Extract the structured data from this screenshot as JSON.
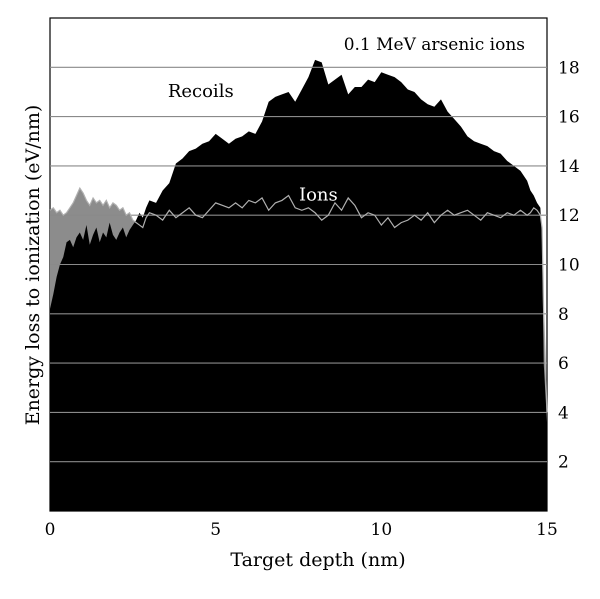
{
  "chart_data": {
    "type": "area",
    "title": "0.1 MeV arsenic ions",
    "xlabel": "Target depth (nm)",
    "ylabel": "Energy loss to ionization (eV/nm)",
    "xlim": [
      0,
      15
    ],
    "ylim": [
      0,
      20
    ],
    "x_ticks": [
      0,
      5,
      10,
      15
    ],
    "y_ticks": [
      2,
      4,
      6,
      8,
      10,
      12,
      14,
      16,
      18
    ],
    "grid": true,
    "series": [
      {
        "name": "Recoils",
        "color": "#000000",
        "x": [
          0.0,
          0.1,
          0.2,
          0.3,
          0.4,
          0.5,
          0.6,
          0.7,
          0.8,
          0.9,
          1.0,
          1.1,
          1.2,
          1.3,
          1.4,
          1.5,
          1.6,
          1.7,
          1.8,
          1.9,
          2.0,
          2.1,
          2.2,
          2.3,
          2.4,
          2.5,
          2.6,
          2.7,
          2.8,
          2.9,
          3.0,
          3.2,
          3.4,
          3.6,
          3.8,
          4.0,
          4.2,
          4.4,
          4.6,
          4.8,
          5.0,
          5.2,
          5.4,
          5.6,
          5.8,
          6.0,
          6.2,
          6.4,
          6.6,
          6.8,
          7.0,
          7.2,
          7.4,
          7.6,
          7.8,
          8.0,
          8.2,
          8.4,
          8.6,
          8.8,
          9.0,
          9.2,
          9.4,
          9.6,
          9.8,
          10.0,
          10.2,
          10.4,
          10.6,
          10.8,
          11.0,
          11.2,
          11.4,
          11.6,
          11.8,
          12.0,
          12.2,
          12.4,
          12.6,
          12.8,
          13.0,
          13.2,
          13.4,
          13.6,
          13.8,
          14.0,
          14.2,
          14.4,
          14.5,
          14.6,
          14.7,
          14.8,
          14.85,
          14.9,
          15.0
        ],
        "values": [
          8.2,
          8.8,
          9.5,
          10.0,
          10.3,
          10.9,
          11.0,
          10.7,
          11.1,
          11.3,
          11.0,
          11.6,
          10.8,
          11.2,
          11.5,
          10.9,
          11.3,
          11.1,
          11.7,
          11.2,
          11.0,
          11.3,
          11.5,
          11.1,
          11.4,
          11.6,
          11.8,
          12.1,
          11.9,
          12.3,
          12.6,
          12.5,
          13.0,
          13.3,
          14.1,
          14.3,
          14.6,
          14.7,
          14.9,
          15.0,
          15.3,
          15.1,
          14.9,
          15.1,
          15.2,
          15.4,
          15.3,
          15.8,
          16.6,
          16.8,
          16.9,
          17.0,
          16.6,
          17.1,
          17.6,
          18.3,
          18.2,
          17.3,
          17.5,
          17.7,
          16.9,
          17.2,
          17.2,
          17.5,
          17.4,
          17.8,
          17.7,
          17.6,
          17.4,
          17.1,
          17.0,
          16.7,
          16.5,
          16.4,
          16.7,
          16.2,
          15.9,
          15.6,
          15.2,
          15.0,
          14.9,
          14.8,
          14.6,
          14.5,
          14.2,
          14.0,
          13.8,
          13.4,
          13.0,
          12.8,
          12.5,
          12.3,
          11.0,
          6.0,
          3.6
        ]
      },
      {
        "name": "Ions",
        "color": "#8c8c8c",
        "x": [
          0.0,
          0.1,
          0.2,
          0.3,
          0.4,
          0.5,
          0.6,
          0.7,
          0.8,
          0.9,
          1.0,
          1.1,
          1.2,
          1.3,
          1.4,
          1.5,
          1.6,
          1.7,
          1.8,
          1.9,
          2.0,
          2.1,
          2.2,
          2.3,
          2.4,
          2.5,
          2.6,
          2.7,
          2.8,
          2.9,
          3.0,
          3.2,
          3.4,
          3.6,
          3.8,
          4.0,
          4.2,
          4.4,
          4.6,
          4.8,
          5.0,
          5.2,
          5.4,
          5.6,
          5.8,
          6.0,
          6.2,
          6.4,
          6.6,
          6.8,
          7.0,
          7.2,
          7.4,
          7.6,
          7.8,
          8.0,
          8.2,
          8.4,
          8.6,
          8.8,
          9.0,
          9.2,
          9.4,
          9.6,
          9.8,
          10.0,
          10.2,
          10.4,
          10.6,
          10.8,
          11.0,
          11.2,
          11.4,
          11.6,
          11.8,
          12.0,
          12.2,
          12.4,
          12.6,
          12.8,
          13.0,
          13.2,
          13.4,
          13.6,
          13.8,
          14.0,
          14.2,
          14.4,
          14.5,
          14.6,
          14.7,
          14.8,
          14.85,
          14.9,
          15.0
        ],
        "values": [
          12.2,
          12.3,
          12.1,
          12.2,
          12.0,
          12.1,
          12.3,
          12.5,
          12.8,
          13.1,
          12.9,
          12.6,
          12.4,
          12.7,
          12.5,
          12.6,
          12.4,
          12.6,
          12.3,
          12.5,
          12.4,
          12.2,
          12.3,
          12.0,
          12.1,
          11.8,
          11.7,
          11.6,
          11.5,
          11.9,
          12.1,
          12.0,
          11.8,
          12.2,
          11.9,
          12.1,
          12.3,
          12.0,
          11.9,
          12.2,
          12.5,
          12.4,
          12.3,
          12.5,
          12.3,
          12.6,
          12.5,
          12.7,
          12.2,
          12.5,
          12.6,
          12.8,
          12.3,
          12.2,
          12.3,
          12.1,
          11.8,
          12.0,
          12.5,
          12.2,
          12.7,
          12.4,
          11.9,
          12.1,
          12.0,
          11.6,
          11.9,
          11.5,
          11.7,
          11.8,
          12.0,
          11.8,
          12.1,
          11.7,
          12.0,
          12.2,
          12.0,
          12.1,
          12.2,
          12.0,
          11.8,
          12.1,
          12.0,
          11.9,
          12.1,
          12.0,
          12.2,
          12.0,
          12.1,
          12.3,
          12.2,
          12.0,
          11.5,
          8.0,
          4.0
        ]
      }
    ],
    "annotations": [
      {
        "text": "Recoils",
        "x": 4.55,
        "y": 16.8,
        "color": "#000000"
      },
      {
        "text": "Ions",
        "x": 8.1,
        "y": 12.6,
        "color": "#ffffff"
      }
    ]
  }
}
